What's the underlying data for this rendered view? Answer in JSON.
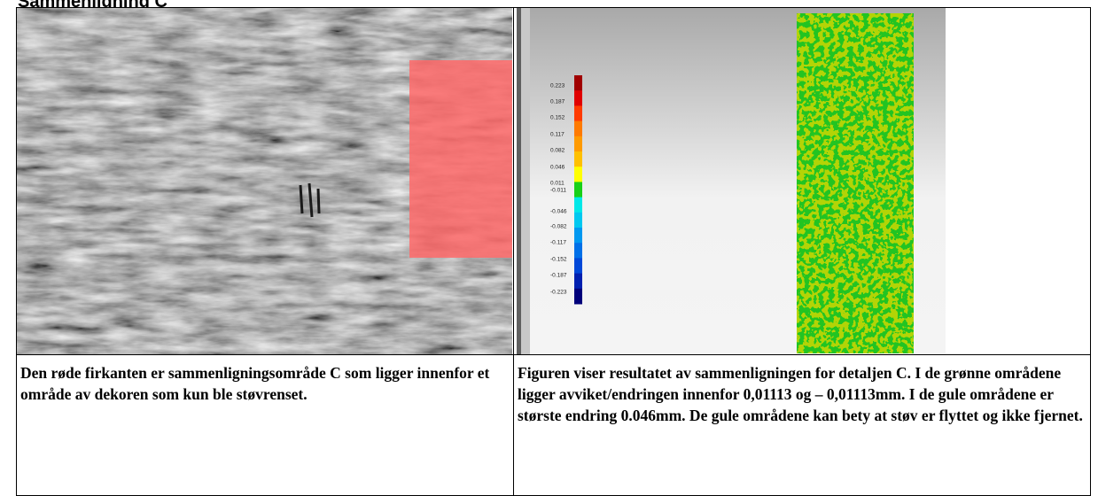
{
  "header": {
    "title": "Sammenligning C"
  },
  "legend": {
    "labels": [
      "0.223",
      "0.187",
      "0.152",
      "0.117",
      "0.082",
      "0.046",
      "0.011",
      "-0.011",
      "-0.046",
      "-0.082",
      "-0.117",
      "-0.152",
      "-0.187",
      "-0.223"
    ]
  },
  "table": {
    "captions": [
      "Den røde firkanten er sammenligningsområde C som ligger innenfor et område av dekoren som kun ble støvrenset.",
      "Figuren viser resultatet av sammenligningen for detaljen C. I de grønne områdene ligger avviket/endringen innenfor 0,01113 og – 0,01113mm. I de gule områdene er største endring 0.046mm. De gule områdene kan bety at støv er flyttet og ikke fjernet."
    ]
  }
}
